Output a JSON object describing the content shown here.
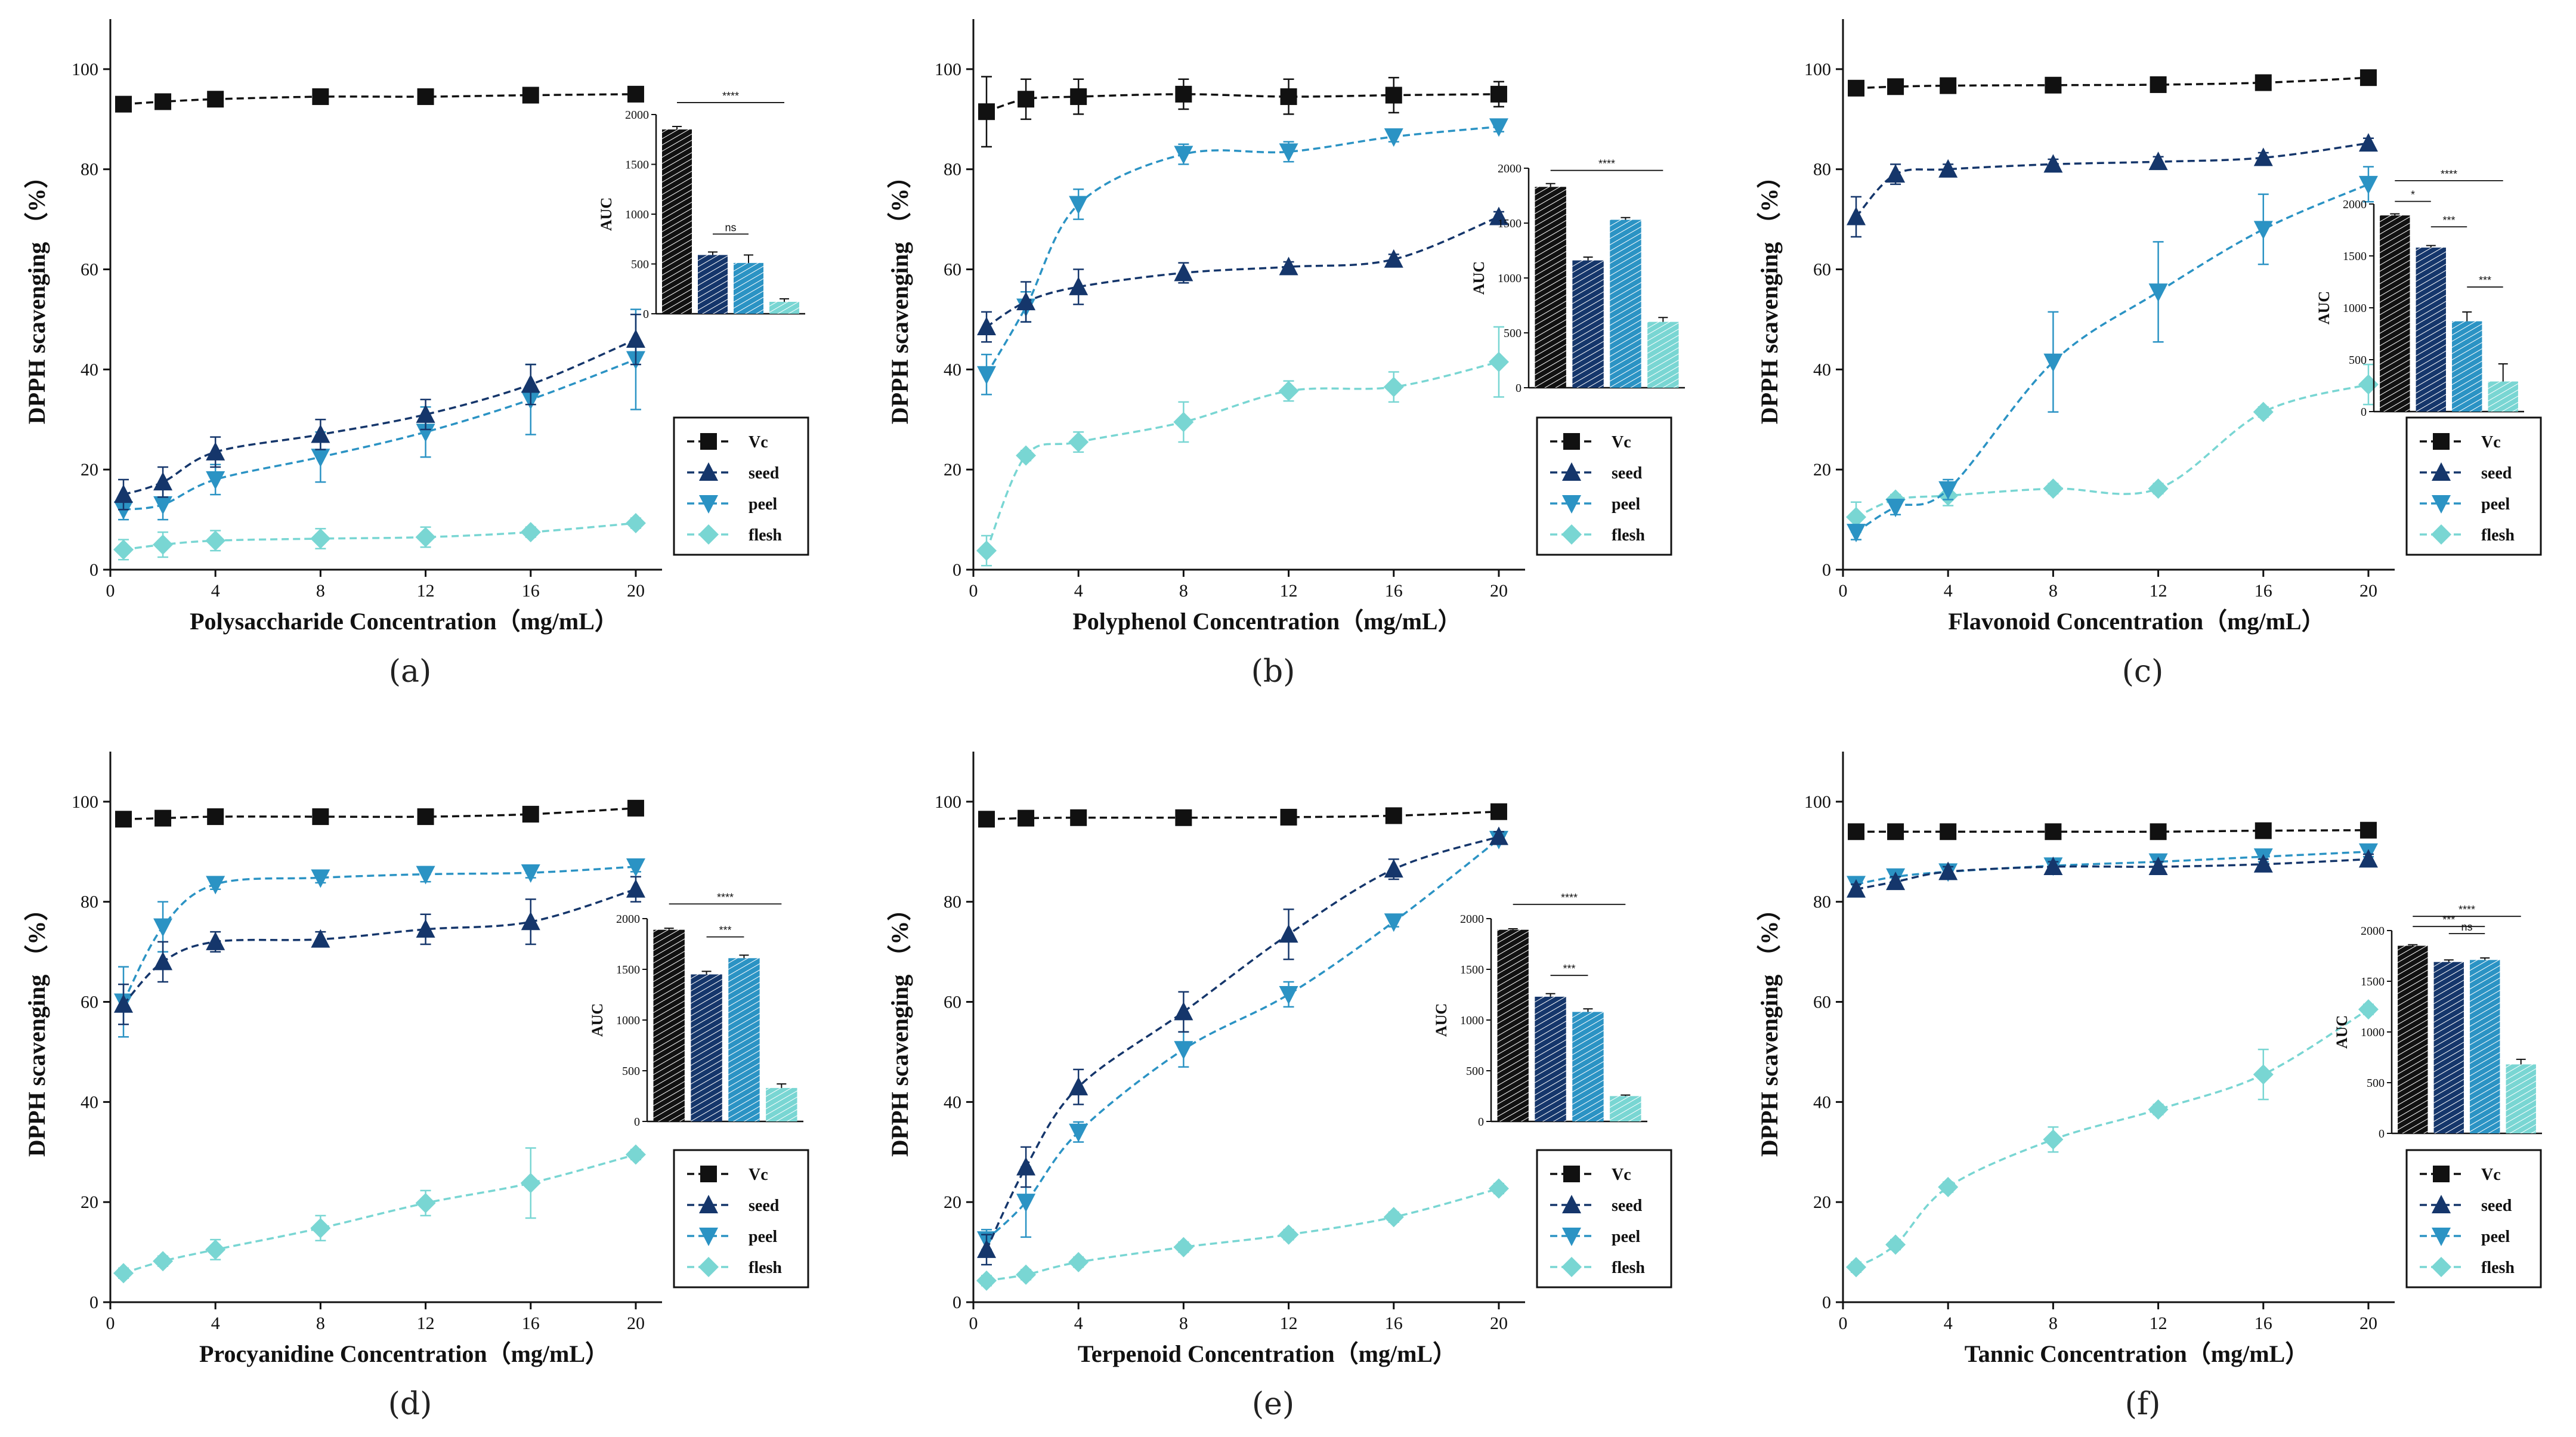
{
  "figure": {
    "ylabel": "DPPH scavenging （%）",
    "inset_ylabel": "AUC",
    "x_ticks": [
      0,
      4,
      8,
      12,
      16,
      20
    ],
    "y_ticks": [
      0,
      20,
      40,
      60,
      80,
      100
    ],
    "legend": [
      "Vc",
      "seed",
      "peel",
      "flesh"
    ],
    "colors": {
      "Vc": "#111111",
      "seed": "#15366b",
      "peel": "#2b93c4",
      "flesh": "#79d6d3"
    }
  },
  "chart_data": [
    {
      "type": "line",
      "panel_label": "(a)",
      "xlabel": "Polysaccharide Concentration（mg/mL）",
      "ylabel": "DPPH scavenging （%）",
      "x": [
        0.5,
        2,
        4,
        8,
        12,
        16,
        20
      ],
      "ylim": [
        0,
        110
      ],
      "series": [
        {
          "name": "Vc",
          "values": [
            93,
            93.5,
            94,
            94.5,
            94.5,
            94.8,
            95
          ],
          "err": [
            0.5,
            0.5,
            0.5,
            0.5,
            0.5,
            0.5,
            0.5
          ]
        },
        {
          "name": "seed",
          "values": [
            15,
            17.5,
            23.5,
            27,
            31,
            37,
            46
          ],
          "err": [
            3,
            3,
            3,
            3,
            3,
            4,
            5
          ]
        },
        {
          "name": "peel",
          "values": [
            12,
            13,
            18,
            22.5,
            27.5,
            34,
            42
          ],
          "err": [
            2,
            3,
            3,
            5,
            5,
            7,
            10
          ]
        },
        {
          "name": "flesh",
          "values": [
            4,
            5,
            5.8,
            6.2,
            6.5,
            7.5,
            9.3
          ],
          "err": [
            2,
            2.5,
            2,
            2,
            2,
            1,
            1
          ]
        }
      ],
      "inset": {
        "ylim": [
          0,
          2000
        ],
        "y_ticks": [
          0,
          500,
          1000,
          1500,
          2000
        ],
        "values": [
          1850,
          590,
          510,
          120
        ],
        "err": [
          30,
          30,
          80,
          30
        ],
        "sig": [
          {
            "from": 0,
            "to": 3,
            "label": "****"
          },
          {
            "from": 1,
            "to": 2,
            "label": "ns"
          }
        ]
      }
    },
    {
      "type": "line",
      "panel_label": "(b)",
      "xlabel": "Polyphenol Concentration（mg/mL）",
      "ylabel": "DPPH scavenging （%）",
      "x": [
        0.5,
        2,
        4,
        8,
        12,
        16,
        20
      ],
      "ylim": [
        0,
        110
      ],
      "series": [
        {
          "name": "Vc",
          "values": [
            91.5,
            94,
            94.5,
            95,
            94.5,
            94.8,
            95
          ],
          "err": [
            7,
            4,
            3.5,
            3,
            3.5,
            3.5,
            2.5
          ]
        },
        {
          "name": "seed",
          "values": [
            48.5,
            53.5,
            56.5,
            59.3,
            60.5,
            62,
            70.5
          ],
          "err": [
            3,
            4,
            3.5,
            2,
            1,
            1,
            1
          ]
        },
        {
          "name": "peel",
          "values": [
            39,
            52.5,
            73,
            83,
            83.5,
            86.5,
            88.5
          ],
          "err": [
            4,
            3,
            3,
            2,
            2,
            1,
            1
          ]
        },
        {
          "name": "flesh",
          "values": [
            3.8,
            22.8,
            25.5,
            29.5,
            35.7,
            36.5,
            41.5
          ],
          "err": [
            3,
            1,
            2,
            4,
            2,
            3,
            7
          ]
        }
      ],
      "inset": {
        "ylim": [
          0,
          2000
        ],
        "y_ticks": [
          0,
          500,
          1000,
          1500,
          2000
        ],
        "values": [
          1830,
          1160,
          1530,
          600
        ],
        "err": [
          30,
          30,
          20,
          40
        ],
        "sig": [
          {
            "from": 0,
            "to": 3,
            "label": "****"
          }
        ]
      }
    },
    {
      "type": "line",
      "panel_label": "(c)",
      "xlabel": "Flavonoid Concentration（mg/mL）",
      "ylabel": "DPPH scavenging （%）",
      "x": [
        0.5,
        2,
        4,
        8,
        12,
        16,
        20
      ],
      "ylim": [
        0,
        110
      ],
      "series": [
        {
          "name": "Vc",
          "values": [
            96.2,
            96.5,
            96.7,
            96.8,
            96.9,
            97.3,
            98.3
          ],
          "err": [
            0.5,
            0.5,
            0.5,
            0.5,
            0.5,
            0.5,
            0.5
          ]
        },
        {
          "name": "seed",
          "values": [
            70.5,
            79,
            80,
            81,
            81.5,
            82.3,
            85.2
          ],
          "err": [
            4,
            2,
            1,
            1,
            1,
            1,
            1
          ]
        },
        {
          "name": "peel",
          "values": [
            7.5,
            12.5,
            16,
            41.5,
            55.5,
            68,
            77
          ],
          "err": [
            1.5,
            1.5,
            2,
            10,
            10,
            7,
            3.5
          ]
        },
        {
          "name": "flesh",
          "values": [
            10.5,
            14,
            14.8,
            16.2,
            16.2,
            31.5,
            37
          ],
          "err": [
            3,
            1,
            2,
            1,
            1,
            1,
            4
          ]
        }
      ],
      "inset": {
        "ylim": [
          0,
          2000
        ],
        "y_ticks": [
          0,
          500,
          1000,
          1500,
          2000
        ],
        "values": [
          1890,
          1580,
          870,
          290
        ],
        "err": [
          15,
          20,
          90,
          170
        ],
        "sig": [
          {
            "from": 0,
            "to": 1,
            "label": "*"
          },
          {
            "from": 1,
            "to": 2,
            "label": "***"
          },
          {
            "from": 2,
            "to": 3,
            "label": "***"
          },
          {
            "from": 0,
            "to": 3,
            "label": "****"
          }
        ]
      }
    },
    {
      "type": "line",
      "panel_label": "(d)",
      "xlabel": "Procyanidine Concentration（mg/mL）",
      "ylabel": "DPPH scavenging （%）",
      "x": [
        0.5,
        2,
        4,
        8,
        12,
        16,
        20
      ],
      "ylim": [
        0,
        110
      ],
      "series": [
        {
          "name": "Vc",
          "values": [
            96.5,
            96.7,
            97,
            97,
            97,
            97.5,
            98.7
          ],
          "err": [
            0.5,
            0.5,
            0.5,
            0.5,
            0.5,
            0.5,
            0.5
          ]
        },
        {
          "name": "seed",
          "values": [
            59.5,
            68,
            72,
            72.5,
            74.5,
            76,
            82.5
          ],
          "err": [
            4,
            4,
            2,
            1.5,
            3,
            4.5,
            2.5
          ]
        },
        {
          "name": "peel",
          "values": [
            60,
            75,
            83.5,
            84.8,
            85.5,
            85.8,
            87
          ],
          "err": [
            7,
            5,
            1,
            1,
            1.5,
            1,
            1
          ]
        },
        {
          "name": "flesh",
          "values": [
            5.8,
            8.2,
            10.5,
            14.8,
            19.8,
            23.8,
            29.5
          ],
          "err": [
            1,
            1,
            2,
            2.5,
            2.5,
            7,
            1
          ]
        }
      ],
      "inset": {
        "ylim": [
          0,
          2000
        ],
        "y_ticks": [
          0,
          500,
          1000,
          1500,
          2000
        ],
        "values": [
          1890,
          1450,
          1610,
          330
        ],
        "err": [
          15,
          30,
          30,
          40
        ],
        "sig": [
          {
            "from": 0,
            "to": 3,
            "label": "****"
          },
          {
            "from": 1,
            "to": 2,
            "label": "***"
          }
        ]
      }
    },
    {
      "type": "line",
      "panel_label": "(e)",
      "xlabel": "Terpenoid Concentration（mg/mL）",
      "ylabel": "DPPH scavenging （%）",
      "x": [
        0.5,
        2,
        4,
        8,
        12,
        16,
        20
      ],
      "ylim": [
        0,
        110
      ],
      "series": [
        {
          "name": "Vc",
          "values": [
            96.5,
            96.7,
            96.8,
            96.8,
            96.9,
            97.2,
            98
          ],
          "err": [
            0.5,
            0.5,
            0.5,
            0.5,
            0.5,
            0.5,
            0.5
          ]
        },
        {
          "name": "seed",
          "values": [
            10.5,
            27,
            43,
            58,
            73.5,
            86.5,
            93
          ],
          "err": [
            3,
            4,
            3.5,
            4,
            5,
            2,
            1
          ]
        },
        {
          "name": "peel",
          "values": [
            12.5,
            20,
            34,
            50.5,
            61.5,
            76,
            92.5
          ],
          "err": [
            2,
            7,
            2,
            3.5,
            2.5,
            1,
            1
          ]
        },
        {
          "name": "flesh",
          "values": [
            4.3,
            5.5,
            8,
            11,
            13.5,
            17,
            22.7
          ],
          "err": [
            1,
            1,
            1,
            1,
            1,
            1,
            1
          ]
        }
      ],
      "inset": {
        "ylim": [
          0,
          2000
        ],
        "y_ticks": [
          0,
          500,
          1000,
          1500,
          2000
        ],
        "values": [
          1890,
          1230,
          1080,
          250
        ],
        "err": [
          10,
          30,
          30,
          10
        ],
        "sig": [
          {
            "from": 0,
            "to": 3,
            "label": "****"
          },
          {
            "from": 1,
            "to": 2,
            "label": "***"
          }
        ]
      }
    },
    {
      "type": "line",
      "panel_label": "(f)",
      "xlabel": "Tannic Concentration（mg/mL）",
      "ylabel": "DPPH scavenging （%）",
      "x": [
        0.5,
        2,
        4,
        8,
        12,
        16,
        20
      ],
      "ylim": [
        0,
        110
      ],
      "series": [
        {
          "name": "Vc",
          "values": [
            94,
            94,
            94,
            94,
            94,
            94.2,
            94.3
          ],
          "err": [
            0.5,
            0.5,
            0.5,
            0.5,
            0.5,
            0.5,
            0.5
          ]
        },
        {
          "name": "seed",
          "values": [
            82.5,
            84,
            86,
            87,
            87,
            87.5,
            88.5
          ],
          "err": [
            1,
            1,
            1,
            1,
            1,
            1,
            1
          ]
        },
        {
          "name": "peel",
          "values": [
            83.5,
            85,
            86,
            87.2,
            88,
            89,
            90
          ],
          "err": [
            1,
            1,
            1,
            1,
            1,
            1,
            1
          ]
        },
        {
          "name": "flesh",
          "values": [
            7,
            11.5,
            23,
            32.5,
            38.5,
            45.5,
            58.5
          ],
          "err": [
            1,
            1,
            1,
            2.5,
            1,
            5,
            1
          ]
        }
      ],
      "inset": {
        "ylim": [
          0,
          2000
        ],
        "y_ticks": [
          0,
          500,
          1000,
          1500,
          2000
        ],
        "values": [
          1850,
          1690,
          1710,
          680
        ],
        "err": [
          10,
          20,
          20,
          50
        ],
        "sig": [
          {
            "from": 0,
            "to": 3,
            "label": "****"
          },
          {
            "from": 0,
            "to": 2,
            "label": "***"
          },
          {
            "from": 1,
            "to": 2,
            "label": "ns"
          }
        ]
      }
    }
  ]
}
